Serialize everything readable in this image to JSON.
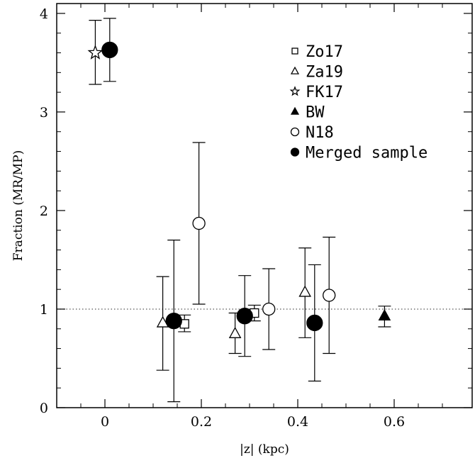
{
  "chart_data": {
    "type": "scatter",
    "xlabel": "|z| (kpc)",
    "ylabel": "Fraction (MR/MP)",
    "xlim": [
      -0.1,
      0.75
    ],
    "ylim": [
      0,
      4.1
    ],
    "xticks": [
      0,
      0.2,
      0.4,
      0.6
    ],
    "xtick_labels": [
      "0",
      "0.2",
      "0.4",
      "0.6"
    ],
    "yticks": [
      0,
      1,
      2,
      3,
      4
    ],
    "ytick_labels": [
      "0",
      "1",
      "2",
      "3",
      "4"
    ],
    "reference_line": {
      "y": 1,
      "style": "dotted"
    },
    "legend_position": "top-right",
    "grid": false,
    "series": [
      {
        "name": "Zo17",
        "marker": "open-square",
        "points": [
          {
            "x": 0.165,
            "y": 0.85,
            "ylow": 0.77,
            "yhigh": 0.94
          },
          {
            "x": 0.31,
            "y": 0.96,
            "ylow": 0.88,
            "yhigh": 1.04
          }
        ]
      },
      {
        "name": "Za19",
        "marker": "open-triangle",
        "points": [
          {
            "x": 0.12,
            "y": 0.86,
            "ylow": 0.38,
            "yhigh": 1.33
          },
          {
            "x": 0.27,
            "y": 0.75,
            "ylow": 0.55,
            "yhigh": 0.96
          },
          {
            "x": 0.415,
            "y": 1.17,
            "ylow": 0.71,
            "yhigh": 1.62
          }
        ]
      },
      {
        "name": "FK17",
        "marker": "open-star",
        "points": [
          {
            "x": -0.02,
            "y": 3.6,
            "ylow": 3.28,
            "yhigh": 3.93
          }
        ]
      },
      {
        "name": "BW",
        "marker": "filled-triangle",
        "points": [
          {
            "x": 0.58,
            "y": 0.93,
            "ylow": 0.82,
            "yhigh": 1.03
          }
        ]
      },
      {
        "name": "N18",
        "marker": "open-circle",
        "points": [
          {
            "x": 0.195,
            "y": 1.87,
            "ylow": 1.05,
            "yhigh": 2.69
          },
          {
            "x": 0.34,
            "y": 1.0,
            "ylow": 0.59,
            "yhigh": 1.41
          },
          {
            "x": 0.465,
            "y": 1.14,
            "ylow": 0.55,
            "yhigh": 1.73
          }
        ]
      },
      {
        "name": "Merged sample",
        "marker": "filled-circle",
        "points": [
          {
            "x": 0.01,
            "y": 3.63,
            "ylow": 3.31,
            "yhigh": 3.95
          },
          {
            "x": 0.143,
            "y": 0.88,
            "ylow": 0.06,
            "yhigh": 1.7
          },
          {
            "x": 0.29,
            "y": 0.93,
            "ylow": 0.52,
            "yhigh": 1.34
          },
          {
            "x": 0.435,
            "y": 0.86,
            "ylow": 0.27,
            "yhigh": 1.45
          }
        ]
      }
    ]
  }
}
